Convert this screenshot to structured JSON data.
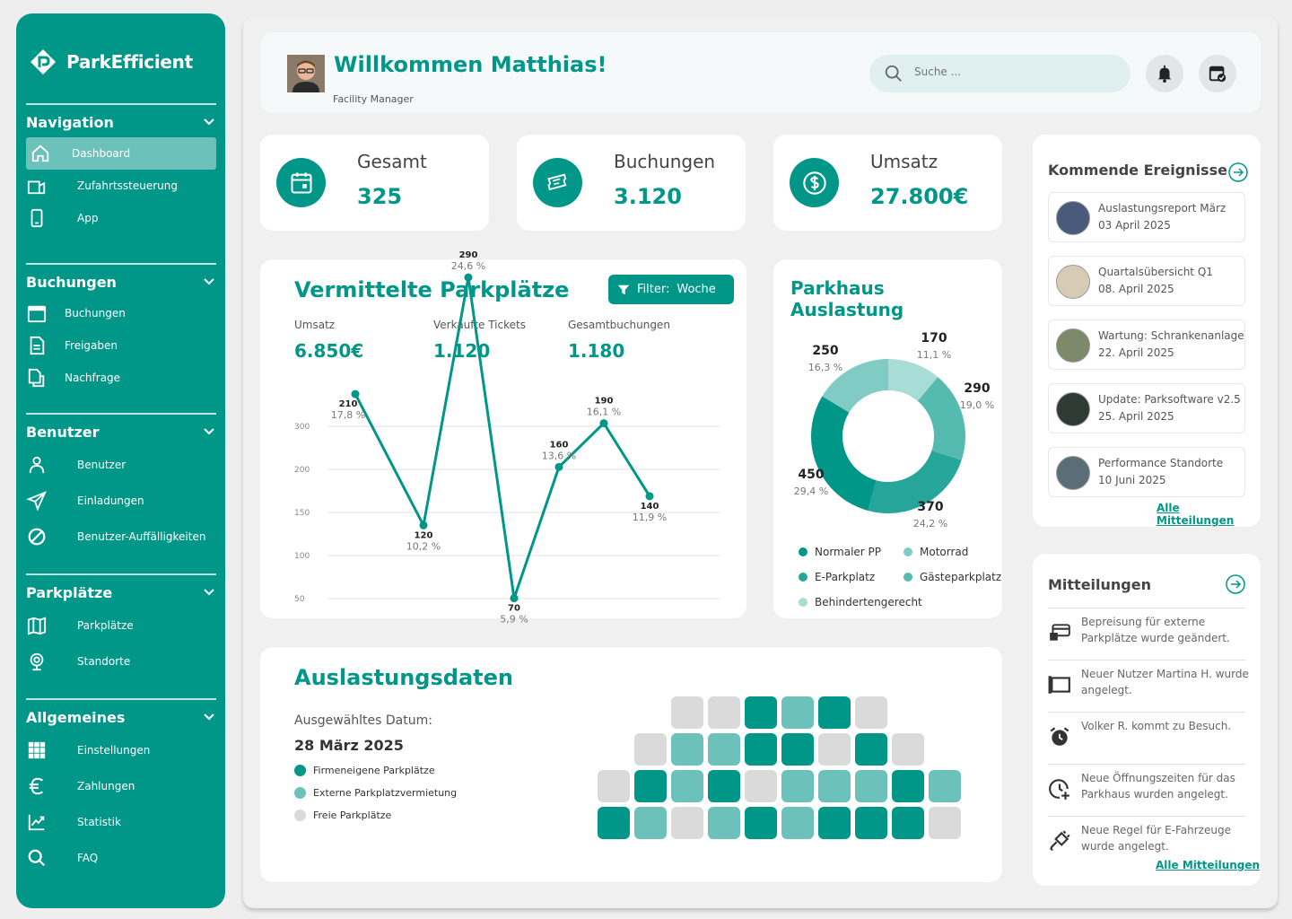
{
  "brand": {
    "name": "ParkEfficient"
  },
  "sidebar": {
    "sections": [
      {
        "title": "Navigation",
        "items": [
          {
            "label": "Dashboard",
            "icon": "home-icon"
          },
          {
            "label": "Zufahrtssteuerung",
            "icon": "barrier-icon"
          },
          {
            "label": "App",
            "icon": "phone-icon"
          }
        ]
      },
      {
        "title": "Buchungen",
        "items": [
          {
            "label": "Buchungen",
            "icon": "calendar-icon"
          },
          {
            "label": "Freigaben",
            "icon": "document-icon"
          },
          {
            "label": "Nachfrage",
            "icon": "documents-icon"
          }
        ]
      },
      {
        "title": "Benutzer",
        "items": [
          {
            "label": "Benutzer",
            "icon": "user-icon"
          },
          {
            "label": "Einladungen",
            "icon": "send-icon"
          },
          {
            "label": "Benutzer-Auffälligkeiten",
            "icon": "block-icon"
          }
        ]
      },
      {
        "title": "Parkplätze",
        "items": [
          {
            "label": "Parkplätze",
            "icon": "map-icon"
          },
          {
            "label": "Standorte",
            "icon": "location-icon"
          }
        ]
      },
      {
        "title": "Allgemeines",
        "items": [
          {
            "label": "Einstellungen",
            "icon": "grid-icon"
          },
          {
            "label": "Zahlungen",
            "icon": "euro-icon"
          },
          {
            "label": "Statistik",
            "icon": "chart-icon"
          },
          {
            "label": "FAQ",
            "icon": "search-icon"
          }
        ]
      }
    ]
  },
  "header": {
    "welcome": "Willkommen Matthias!",
    "role": "Facility Manager",
    "search_placeholder": "Suche ..."
  },
  "stats": [
    {
      "title": "Gesamt",
      "value": "325",
      "icon": "calendar-icon"
    },
    {
      "title": "Buchungen",
      "value": "3.120",
      "icon": "ticket-icon"
    },
    {
      "title": "Umsatz",
      "value": "27.800€",
      "icon": "dollar-icon"
    }
  ],
  "vermittelt": {
    "title": "Vermittelte Parkplätze",
    "filter_label": "Filter:",
    "filter_value": "Woche",
    "kpis": [
      {
        "label": "Umsatz",
        "value": "6.850€"
      },
      {
        "label": "Verkaufte Tickets",
        "value": "1.120"
      },
      {
        "label": "Gesamtbuchungen",
        "value": "1.180"
      }
    ]
  },
  "chart_data": [
    {
      "type": "line",
      "title": "Vermittelte Parkplätze",
      "yticks": [
        "300",
        "200",
        "150",
        "100",
        "50"
      ],
      "points": [
        {
          "value": 210,
          "label": "210",
          "pct": "17,8 %"
        },
        {
          "value": 120,
          "label": "120",
          "pct": "10,2 %"
        },
        {
          "value": 290,
          "label": "290",
          "pct": "24,6 %"
        },
        {
          "value": 70,
          "label": "70",
          "pct": "5,9 %"
        },
        {
          "value": 160,
          "label": "160",
          "pct": "13,6 %"
        },
        {
          "value": 190,
          "label": "190",
          "pct": "16,1 %"
        },
        {
          "value": 140,
          "label": "140",
          "pct": "11,9 %"
        }
      ],
      "grid": true
    },
    {
      "type": "pie",
      "title": "Parkhaus Auslastung",
      "slices": [
        {
          "value": 170,
          "label": "170",
          "pct": "11,1 %",
          "color": "#a8dcd7"
        },
        {
          "value": 290,
          "label": "290",
          "pct": "19,0 %",
          "color": "#55bab0"
        },
        {
          "value": 370,
          "label": "370",
          "pct": "24,2 %",
          "color": "#26a69a"
        },
        {
          "value": 450,
          "label": "450",
          "pct": "29,4 %",
          "color": "#009688"
        },
        {
          "value": 250,
          "label": "250",
          "pct": "16,3 %",
          "color": "#80cbc4"
        }
      ],
      "legend": [
        {
          "name": "Normaler PP",
          "color": "#009688"
        },
        {
          "name": "Motorrad",
          "color": "#80cbc4"
        },
        {
          "name": "E-Parkplatz",
          "color": "#26a69a"
        },
        {
          "name": "Gästeparkplatz",
          "color": "#55bab0"
        },
        {
          "name": "Behindertengerecht",
          "color": "#a8dcd7"
        }
      ]
    }
  ],
  "events": {
    "title": "Kommende Ereignisse",
    "items": [
      {
        "title": "Auslastungsreport März",
        "date": "03 April 2025",
        "thumb": "#4a5a7a"
      },
      {
        "title": "Quartalsübersicht Q1",
        "date": "08. April 2025",
        "thumb": "#d8cbb5"
      },
      {
        "title": "Wartung: Schrankenanlage",
        "date": "22. April 2025",
        "thumb": "#7c8a6a"
      },
      {
        "title": "Update: Parksoftware v2.5",
        "date": "25. April 2025",
        "thumb": "#2f3a35"
      },
      {
        "title": "Performance Standorte",
        "date": "10 Juni 2025",
        "thumb": "#5b6e78"
      }
    ],
    "link": "Alle Mitteilungen"
  },
  "messages": {
    "title": "Mitteilungen",
    "items": [
      {
        "text": "Bepreisung für externe Parkplätze wurde geändert.",
        "icon": "card-icon"
      },
      {
        "text": "Neuer Nutzer Martina H. wurde angelegt.",
        "icon": "user-frame-icon"
      },
      {
        "text": "Volker R. kommt zu Besuch.",
        "icon": "alarm-icon"
      },
      {
        "text": "Neue Öffnungszeiten für das Parkhaus wurden angelegt.",
        "icon": "clock-plus-icon"
      },
      {
        "text": "Neue Regel für E-Fahrzeuge wurde angelegt.",
        "icon": "plug-icon"
      }
    ],
    "link": "Alle Mitteilungen"
  },
  "auslastung": {
    "title": "Auslastungsdaten",
    "date_label": "Ausgewähltes Datum:",
    "date": "28 März 2025",
    "legend": [
      {
        "label": "Firmeneigene Parkplätze",
        "color": "#009688"
      },
      {
        "label": "Externe Parkplatzvermietung",
        "color": "#6cc2ba"
      },
      {
        "label": "Freie Parkplätze",
        "color": "#dadada"
      }
    ],
    "rows": [
      [
        "f",
        "f",
        "o",
        "e",
        "o",
        "f"
      ],
      [
        "f",
        "e",
        "e",
        "o",
        "o",
        "f",
        "o",
        "f"
      ],
      [
        "f",
        "o",
        "e",
        "o",
        "f",
        "e",
        "e",
        "e",
        "o",
        "e"
      ],
      [
        "o",
        "e",
        "f",
        "e",
        "o",
        "e",
        "o",
        "o",
        "o",
        "f"
      ]
    ]
  },
  "colors": {
    "accent": "#009688",
    "light": "#6cc2ba",
    "free": "#dadada"
  }
}
